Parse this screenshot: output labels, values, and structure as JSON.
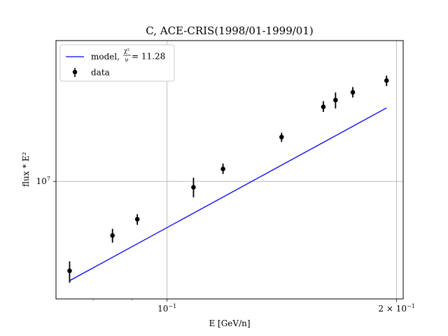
{
  "chart_data": {
    "type": "scatter",
    "title": "C, ACE-CRIS(1998/01-1999/01)",
    "xlabel": "E [GeV/n]",
    "ylabel": "flux * E²",
    "xscale": "log",
    "yscale": "log",
    "xlim": [
      0.0715,
      0.204
    ],
    "ylim": [
      5540000,
      20300000
    ],
    "grid": true,
    "legend_position": "upper-left",
    "x_ticks": [
      {
        "value": 0.1,
        "base": "10",
        "exp": "−1",
        "prefix": ""
      },
      {
        "value": 0.2,
        "base": "10",
        "exp": "−1",
        "prefix": "2 × "
      }
    ],
    "x_minor_ticks": [
      0.08,
      0.09,
      0.3
    ],
    "y_ticks": [
      {
        "value": 10000000,
        "base": "10",
        "exp": "7"
      }
    ],
    "series": [
      {
        "name": "data",
        "kind": "errorbar",
        "color": "#000000",
        "x": [
          0.0745,
          0.0848,
          0.0914,
          0.1083,
          0.1184,
          0.1413,
          0.1603,
          0.1663,
          0.1752,
          0.194
        ],
        "y": [
          6380000,
          7620000,
          8270000,
          9710000,
          10650000,
          12500000,
          14550000,
          15050000,
          15650000,
          16600000
        ],
        "yerr_low": [
          6010000,
          7350000,
          8040000,
          9230000,
          10380000,
          12200000,
          14180000,
          14430000,
          15250000,
          16150000
        ],
        "yerr_high": [
          6690000,
          7880000,
          8480000,
          10190000,
          10940000,
          12770000,
          14970000,
          15640000,
          16070000,
          17020000
        ]
      },
      {
        "name": "model, ",
        "kind": "line",
        "color": "#0000ff",
        "x": [
          0.0745,
          0.194
        ],
        "y": [
          6070000,
          14470000
        ]
      }
    ],
    "legend": {
      "model_label_prefix": "model, ",
      "model_label_num": "χ²",
      "model_label_den": "ν",
      "model_label_value": " = 11.28",
      "data_label": "data"
    }
  }
}
